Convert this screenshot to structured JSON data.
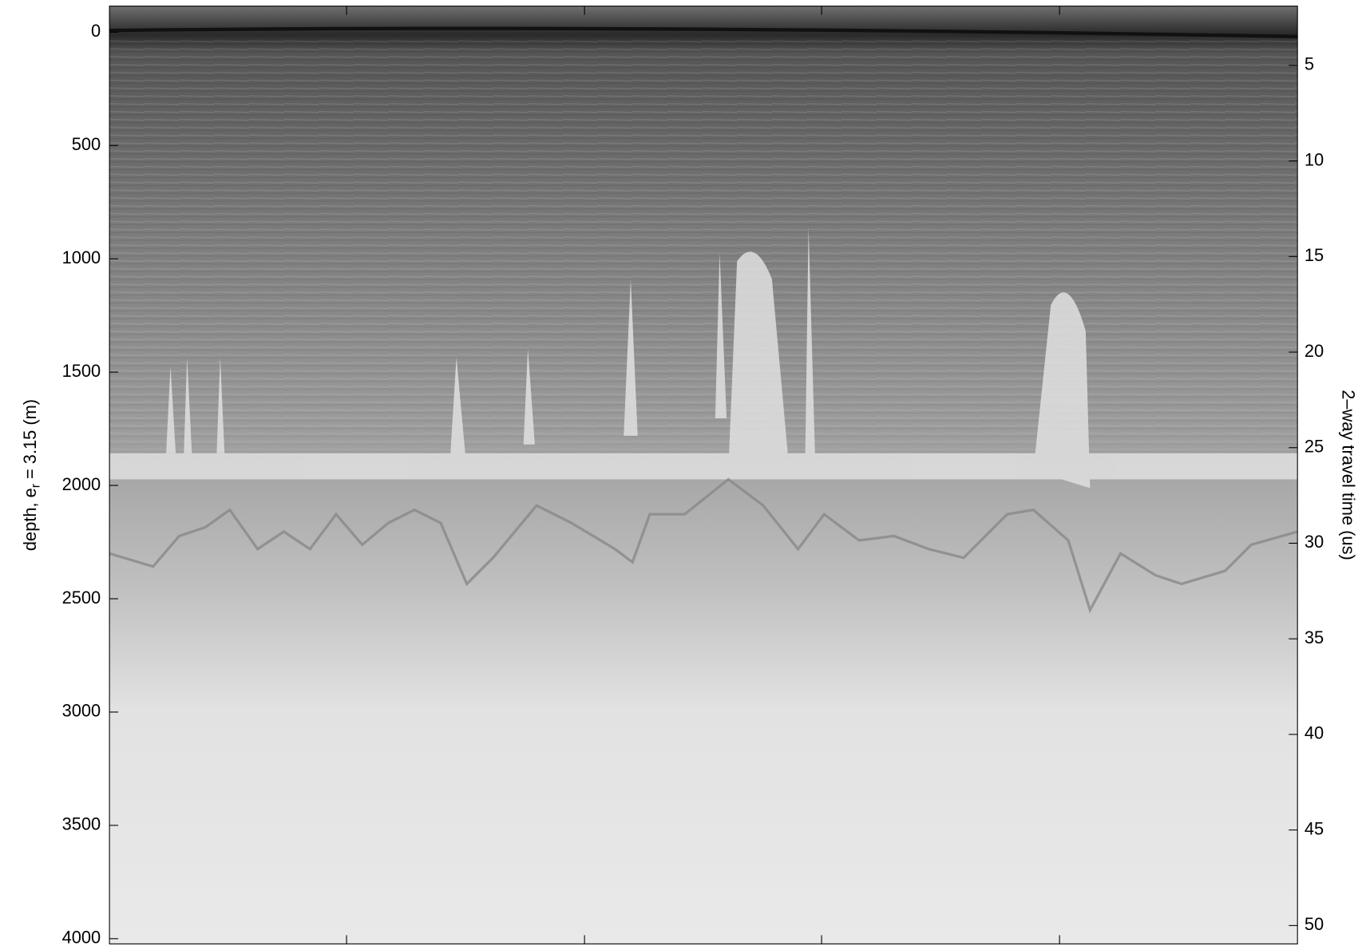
{
  "chart_data": {
    "type": "radargram",
    "ylabel": {
      "text": "depth, e",
      "subscript": "r",
      "rest": " = 3.15 (m)"
    },
    "y2label": "2–way travel time (us)",
    "ylim": [
      -115,
      4023
    ],
    "yticks": [
      0,
      500,
      1000,
      1500,
      2000,
      2500,
      3000,
      3500,
      4000
    ],
    "y2lim": [
      1.9,
      50.96
    ],
    "y2ticks": [
      5,
      10,
      15,
      20,
      25,
      30,
      35,
      40,
      45,
      50
    ]
  }
}
